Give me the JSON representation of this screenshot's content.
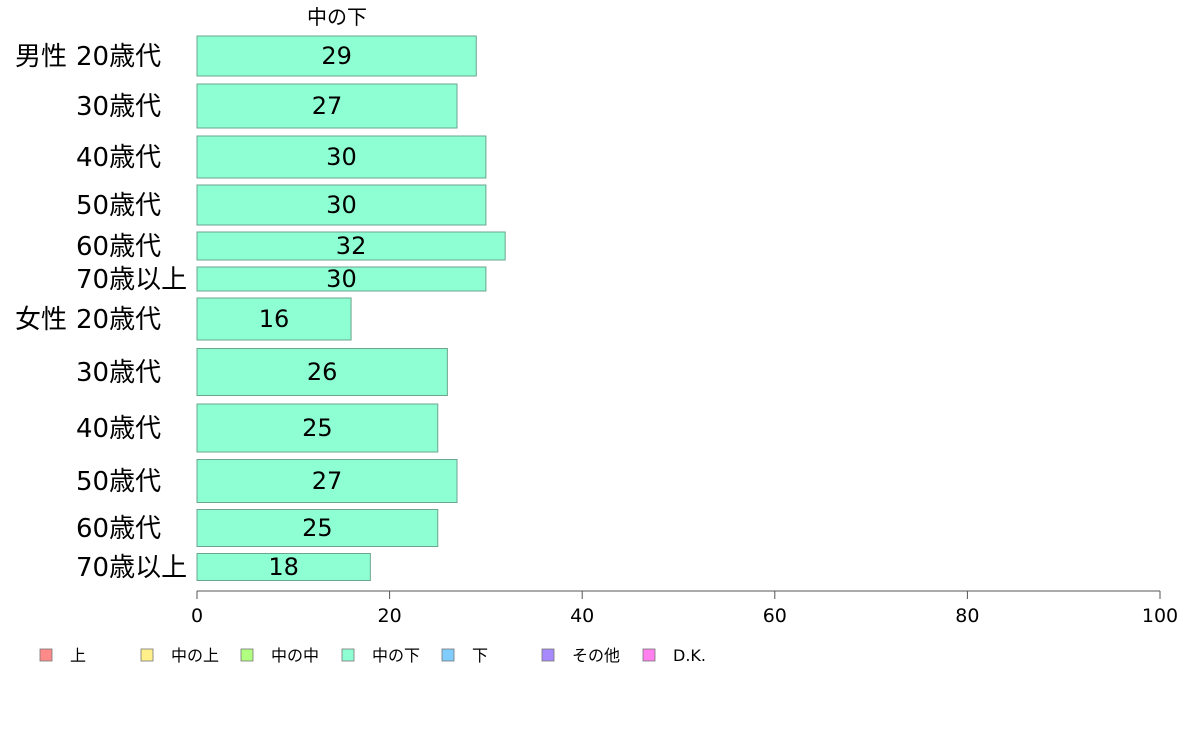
{
  "chart_data": {
    "type": "bar",
    "orientation": "horizontal",
    "title": "中の下",
    "xlim": [
      0,
      100
    ],
    "xticks": [
      0,
      20,
      40,
      60,
      80,
      100
    ],
    "groups": [
      {
        "label": "男性",
        "rows": [
          {
            "label": "20歳代",
            "value": 29
          },
          {
            "label": "30歳代",
            "value": 27
          },
          {
            "label": "40歳代",
            "value": 30
          },
          {
            "label": "50歳代",
            "value": 30
          },
          {
            "label": "60歳代",
            "value": 32
          },
          {
            "label": "70歳以上",
            "value": 30
          }
        ]
      },
      {
        "label": "女性",
        "rows": [
          {
            "label": "20歳代",
            "value": 16
          },
          {
            "label": "30歳代",
            "value": 26
          },
          {
            "label": "40歳代",
            "value": 25
          },
          {
            "label": "50歳代",
            "value": 27
          },
          {
            "label": "60歳代",
            "value": 25
          },
          {
            "label": "70歳以上",
            "value": 18
          }
        ]
      }
    ],
    "bar_color": "#8effd2",
    "bar_stroke": "#6aa58f",
    "legend": {
      "placement": "bottom",
      "items": [
        {
          "label": "上",
          "color": "#ff8a8a"
        },
        {
          "label": "中の上",
          "color": "#fff08a"
        },
        {
          "label": "中の中",
          "color": "#b0ff80"
        },
        {
          "label": "中の下",
          "color": "#8effd2"
        },
        {
          "label": "下",
          "color": "#80ccff"
        },
        {
          "label": "その他",
          "color": "#a88aff"
        },
        {
          "label": "D.K.",
          "color": "#ff80ee"
        }
      ]
    }
  }
}
